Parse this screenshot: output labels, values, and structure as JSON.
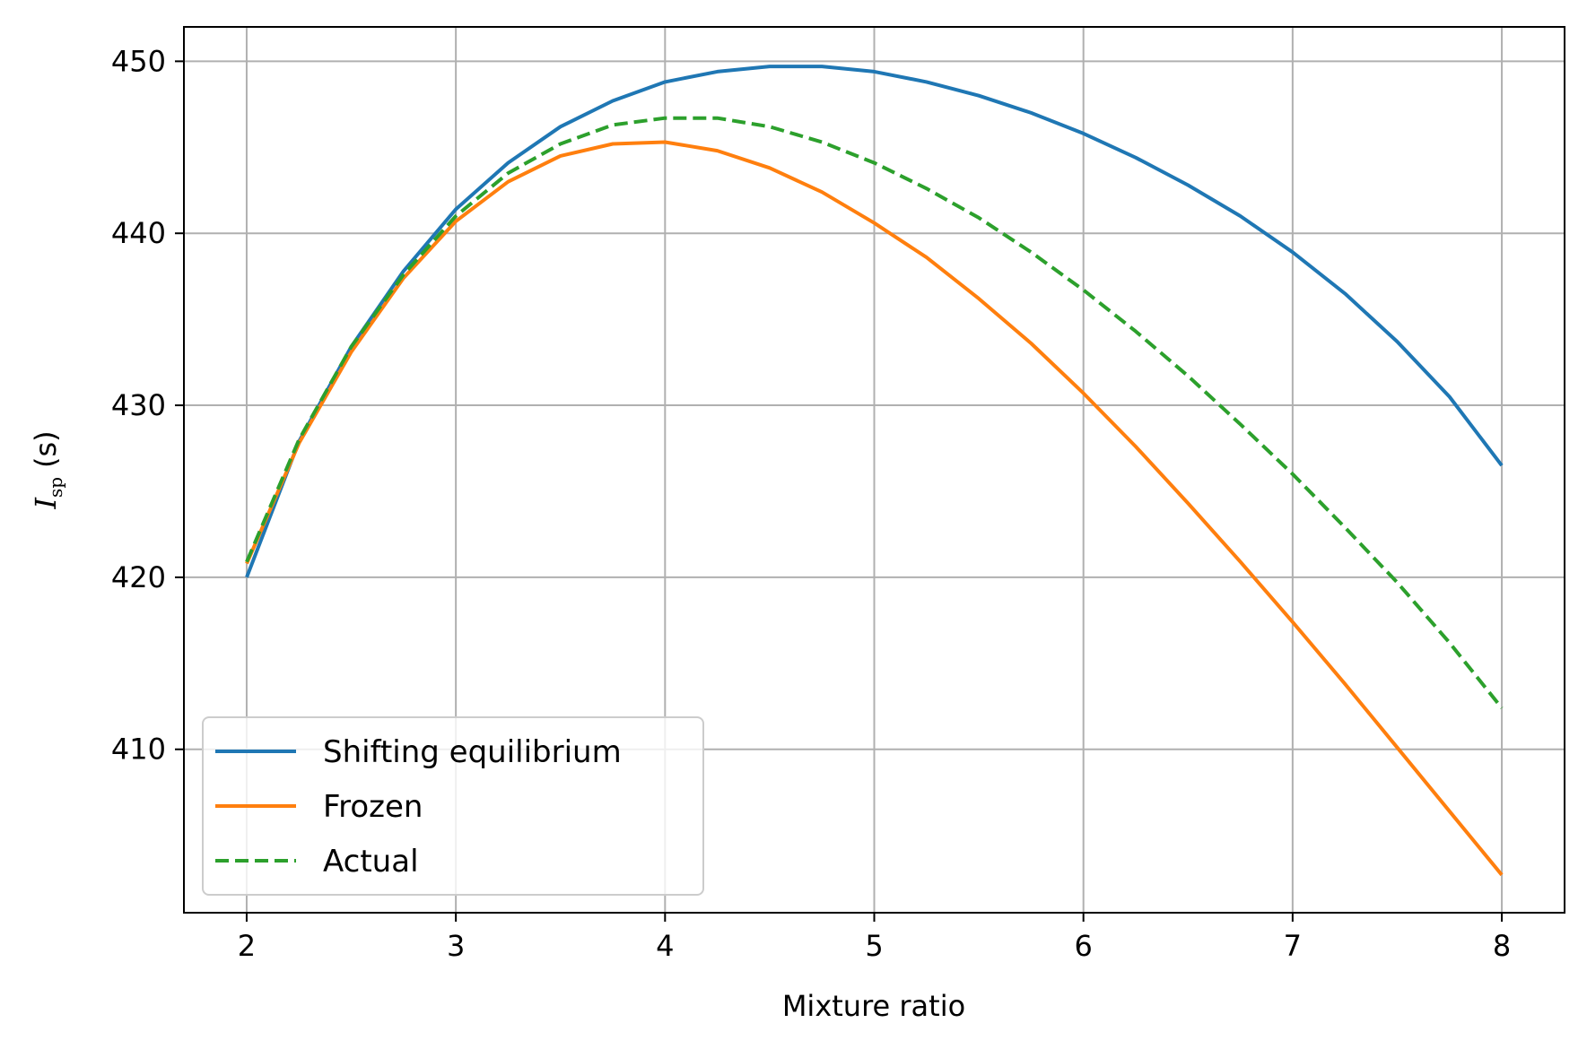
{
  "chart_data": {
    "type": "line",
    "xlabel": "Mixture ratio",
    "ylabel_main": "I",
    "ylabel_sub": "sp",
    "ylabel_unit": "(s)",
    "xlim": [
      1.7,
      8.3
    ],
    "ylim": [
      400.5,
      452.0
    ],
    "x_ticks": [
      2,
      3,
      4,
      5,
      6,
      7,
      8
    ],
    "y_ticks": [
      410,
      420,
      430,
      440,
      450
    ],
    "grid": true,
    "legend_position": "lower-left",
    "x": [
      2.0,
      2.25,
      2.5,
      2.75,
      3.0,
      3.25,
      3.5,
      3.75,
      4.0,
      4.25,
      4.5,
      4.75,
      5.0,
      5.25,
      5.5,
      5.75,
      6.0,
      6.25,
      6.5,
      6.75,
      7.0,
      7.25,
      7.5,
      7.75,
      8.0
    ],
    "series": [
      {
        "name": "Shifting equilibrium",
        "color": "#1f77b4",
        "dash": "solid",
        "values": [
          420.0,
          427.9,
          433.4,
          437.8,
          441.4,
          444.1,
          446.2,
          447.7,
          448.8,
          449.4,
          449.7,
          449.7,
          449.4,
          448.8,
          448.0,
          447.0,
          445.8,
          444.4,
          442.8,
          441.0,
          438.9,
          436.5,
          433.7,
          430.5,
          426.5
        ]
      },
      {
        "name": "Frozen",
        "color": "#ff7f0e",
        "dash": "solid",
        "values": [
          420.8,
          427.8,
          433.1,
          437.4,
          440.7,
          443.0,
          444.5,
          445.2,
          445.3,
          444.8,
          443.8,
          442.4,
          440.6,
          438.6,
          436.2,
          433.6,
          430.7,
          427.6,
          424.3,
          420.9,
          417.4,
          413.8,
          410.1,
          406.4,
          402.7
        ]
      },
      {
        "name": "Actual",
        "color": "#2ca02c",
        "dash": "dashed",
        "values": [
          420.9,
          428.0,
          433.4,
          437.6,
          441.0,
          443.5,
          445.2,
          446.3,
          446.7,
          446.7,
          446.2,
          445.3,
          444.1,
          442.6,
          440.9,
          438.9,
          436.7,
          434.3,
          431.7,
          428.9,
          426.0,
          422.9,
          419.7,
          416.2,
          412.4
        ]
      }
    ]
  }
}
